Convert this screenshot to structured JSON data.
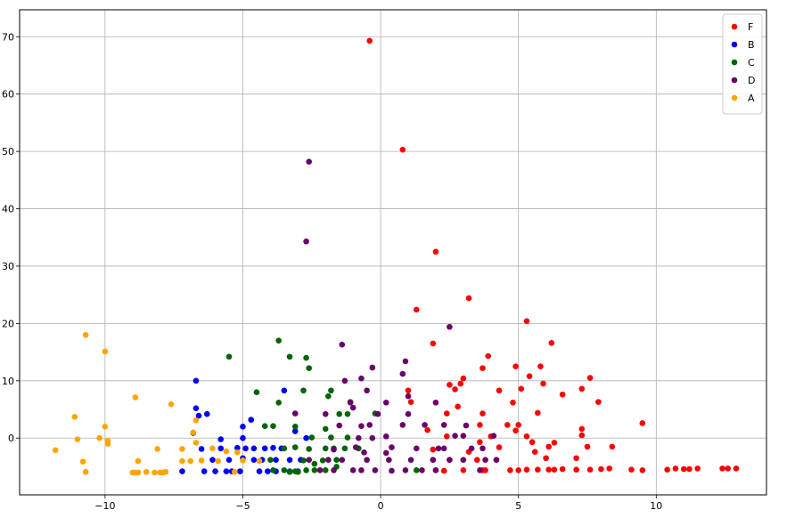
{
  "chart_data": {
    "type": "scatter",
    "title": "",
    "xlabel": "",
    "ylabel": "",
    "xlim": [
      -13.1,
      14.0
    ],
    "ylim": [
      -9.9,
      74.7
    ],
    "x_ticks": [
      -10,
      -5,
      0,
      5,
      10
    ],
    "y_ticks": [
      0,
      10,
      20,
      30,
      40,
      50,
      60,
      70
    ],
    "grid": true,
    "legend_position": "top-right",
    "series": [
      {
        "name": "F",
        "color": "#ff0000",
        "points": [
          [
            -0.4,
            69.3
          ],
          [
            0.8,
            50.3
          ],
          [
            2.0,
            32.5
          ],
          [
            3.2,
            24.4
          ],
          [
            1.3,
            22.4
          ],
          [
            5.3,
            20.4
          ],
          [
            1.9,
            16.5
          ],
          [
            6.2,
            16.6
          ],
          [
            3.9,
            14.3
          ],
          [
            5.8,
            12.5
          ],
          [
            3.7,
            12.2
          ],
          [
            4.9,
            12.5
          ],
          [
            7.6,
            10.5
          ],
          [
            5.1,
            8.6
          ],
          [
            5.4,
            10.8
          ],
          [
            7.3,
            8.6
          ],
          [
            4.3,
            8.3
          ],
          [
            1.0,
            8.3
          ],
          [
            5.9,
            9.5
          ],
          [
            6.6,
            7.6
          ],
          [
            3.0,
            10.4
          ],
          [
            2.7,
            8.5
          ],
          [
            2.9,
            9.5
          ],
          [
            2.5,
            9.3
          ],
          [
            7.9,
            6.3
          ],
          [
            4.8,
            6.2
          ],
          [
            2.8,
            5.5
          ],
          [
            5.7,
            4.4
          ],
          [
            3.7,
            4.3
          ],
          [
            1.1,
            6.3
          ],
          [
            9.5,
            2.6
          ],
          [
            7.3,
            1.6
          ],
          [
            5.0,
            2.3
          ],
          [
            4.6,
            2.3
          ],
          [
            3.6,
            2.3
          ],
          [
            2.4,
            4.3
          ],
          [
            7.3,
            0.5
          ],
          [
            7.5,
            -1.5
          ],
          [
            5.5,
            -0.7
          ],
          [
            6.3,
            -0.8
          ],
          [
            4.9,
            1.3
          ],
          [
            4.0,
            0.3
          ],
          [
            8.4,
            -1.5
          ],
          [
            6.1,
            -1.5
          ],
          [
            5.3,
            0.3
          ],
          [
            3.6,
            -0.7
          ],
          [
            2.4,
            0.3
          ],
          [
            1.7,
            1.4
          ],
          [
            1.9,
            -2.0
          ],
          [
            4.3,
            -1.6
          ],
          [
            3.2,
            -2.4
          ],
          [
            5.6,
            -2.4
          ],
          [
            7.1,
            -3.5
          ],
          [
            6.0,
            -3.5
          ],
          [
            4.2,
            -3.8
          ],
          [
            3.5,
            -3.8
          ],
          [
            2.5,
            -3.8
          ],
          [
            1.9,
            -3.8
          ],
          [
            3.7,
            -5.6
          ],
          [
            4.7,
            -5.6
          ],
          [
            5.0,
            -5.6
          ],
          [
            5.3,
            -5.5
          ],
          [
            5.7,
            -5.5
          ],
          [
            6.1,
            -5.5
          ],
          [
            6.3,
            -5.5
          ],
          [
            6.6,
            -5.4
          ],
          [
            7.1,
            -5.5
          ],
          [
            7.6,
            -5.5
          ],
          [
            8.0,
            -5.4
          ],
          [
            8.3,
            -5.3
          ],
          [
            9.1,
            -5.5
          ],
          [
            9.5,
            -5.6
          ],
          [
            10.4,
            -5.5
          ],
          [
            10.7,
            -5.3
          ],
          [
            11.0,
            -5.4
          ],
          [
            11.2,
            -5.4
          ],
          [
            11.5,
            -5.3
          ],
          [
            12.4,
            -5.3
          ],
          [
            12.6,
            -5.3
          ],
          [
            12.9,
            -5.3
          ],
          [
            2.0,
            -5.6
          ],
          [
            2.3,
            -5.7
          ],
          [
            3.0,
            -5.6
          ],
          [
            3.8,
            -5.6
          ]
        ]
      },
      {
        "name": "B",
        "color": "#0000ff",
        "points": [
          [
            -6.7,
            10.0
          ],
          [
            -3.5,
            8.3
          ],
          [
            -6.3,
            4.2
          ],
          [
            -6.6,
            3.9
          ],
          [
            -6.7,
            5.2
          ],
          [
            -4.7,
            3.2
          ],
          [
            -5.0,
            2.0
          ],
          [
            -6.8,
            0.9
          ],
          [
            -3.1,
            1.2
          ],
          [
            -5.0,
            0.0
          ],
          [
            -5.8,
            -0.2
          ],
          [
            -2.7,
            0.0
          ],
          [
            -6.5,
            -1.9
          ],
          [
            -5.8,
            -1.8
          ],
          [
            -5.2,
            -1.7
          ],
          [
            -4.9,
            -1.8
          ],
          [
            -4.6,
            -1.8
          ],
          [
            -4.2,
            -1.8
          ],
          [
            -3.9,
            -1.7
          ],
          [
            -3.6,
            -1.8
          ],
          [
            -6.1,
            -3.8
          ],
          [
            -5.5,
            -3.8
          ],
          [
            -5.0,
            -3.5
          ],
          [
            -4.6,
            -3.8
          ],
          [
            -4.3,
            -3.8
          ],
          [
            -3.8,
            -3.8
          ],
          [
            -3.3,
            -3.8
          ],
          [
            -2.9,
            -3.8
          ],
          [
            -7.2,
            -5.8
          ],
          [
            -6.4,
            -5.8
          ],
          [
            -6.0,
            -5.8
          ],
          [
            -5.6,
            -5.8
          ],
          [
            -5.4,
            -5.8
          ],
          [
            -5.1,
            -5.8
          ],
          [
            -4.4,
            -5.8
          ],
          [
            -4.1,
            -5.8
          ],
          [
            -3.8,
            -5.8
          ],
          [
            -3.3,
            -5.8
          ],
          [
            -3.0,
            -5.8
          ]
        ]
      },
      {
        "name": "C",
        "color": "#006400",
        "points": [
          [
            -3.7,
            17.0
          ],
          [
            -5.5,
            14.2
          ],
          [
            -3.3,
            14.2
          ],
          [
            -2.7,
            14.0
          ],
          [
            -2.6,
            12.2
          ],
          [
            -4.5,
            8.0
          ],
          [
            -2.8,
            8.3
          ],
          [
            -1.8,
            8.3
          ],
          [
            -1.1,
            6.3
          ],
          [
            -1.2,
            4.2
          ],
          [
            -1.5,
            4.2
          ],
          [
            -3.7,
            6.2
          ],
          [
            -1.9,
            7.3
          ],
          [
            -0.2,
            4.3
          ],
          [
            -4.2,
            2.1
          ],
          [
            -3.1,
            2.0
          ],
          [
            -2.0,
            1.6
          ],
          [
            -3.9,
            2.1
          ],
          [
            -2.5,
            0.1
          ],
          [
            -1.8,
            0.1
          ],
          [
            -1.2,
            0.1
          ],
          [
            -3.5,
            -1.8
          ],
          [
            -3.1,
            -1.6
          ],
          [
            -2.6,
            -1.9
          ],
          [
            -2.0,
            -1.8
          ],
          [
            -1.7,
            -1.8
          ],
          [
            -1.3,
            -1.8
          ],
          [
            -0.8,
            -1.8
          ],
          [
            -2.1,
            -3.9
          ],
          [
            -1.6,
            -3.8
          ],
          [
            -2.4,
            -4.5
          ],
          [
            -2.8,
            -3.9
          ],
          [
            -4.0,
            -3.8
          ],
          [
            -3.9,
            -5.6
          ],
          [
            -3.5,
            -5.6
          ],
          [
            -2.7,
            -5.6
          ],
          [
            -2.4,
            -5.6
          ],
          [
            -2.0,
            -5.6
          ],
          [
            -1.6,
            -5.0
          ],
          [
            1.3,
            -5.6
          ],
          [
            -3.1,
            -5.8
          ],
          [
            -3.0,
            -5.9
          ],
          [
            -3.3,
            -5.9
          ]
        ]
      },
      {
        "name": "D",
        "color": "#6a006a",
        "points": [
          [
            -2.6,
            48.2
          ],
          [
            -2.7,
            34.3
          ],
          [
            2.5,
            19.4
          ],
          [
            -1.4,
            16.3
          ],
          [
            0.9,
            13.4
          ],
          [
            -0.3,
            12.3
          ],
          [
            -0.7,
            10.4
          ],
          [
            -1.3,
            10.0
          ],
          [
            0.8,
            11.2
          ],
          [
            -0.5,
            8.3
          ],
          [
            1.0,
            7.3
          ],
          [
            2.0,
            6.2
          ],
          [
            -1.1,
            6.2
          ],
          [
            0.2,
            6.2
          ],
          [
            -1.0,
            5.3
          ],
          [
            1.0,
            4.2
          ],
          [
            -0.1,
            4.2
          ],
          [
            -2.0,
            4.2
          ],
          [
            -3.1,
            4.3
          ],
          [
            0.8,
            2.3
          ],
          [
            1.6,
            2.3
          ],
          [
            -0.4,
            2.3
          ],
          [
            -0.7,
            2.1
          ],
          [
            -1.5,
            2.2
          ],
          [
            2.3,
            2.3
          ],
          [
            3.1,
            2.2
          ],
          [
            4.1,
            0.4
          ],
          [
            3.0,
            0.4
          ],
          [
            2.7,
            0.4
          ],
          [
            0.2,
            0.3
          ],
          [
            -0.3,
            0.0
          ],
          [
            -0.8,
            0.0
          ],
          [
            -0.9,
            -1.6
          ],
          [
            0.4,
            -1.6
          ],
          [
            1.3,
            -1.8
          ],
          [
            2.1,
            -1.8
          ],
          [
            2.3,
            -1.8
          ],
          [
            3.3,
            -1.8
          ],
          [
            3.7,
            -1.8
          ],
          [
            -1.7,
            -2.0
          ],
          [
            -0.6,
            -2.5
          ],
          [
            0.2,
            -2.6
          ],
          [
            -0.5,
            -3.8
          ],
          [
            0.3,
            -3.8
          ],
          [
            1.1,
            -3.8
          ],
          [
            1.9,
            -3.8
          ],
          [
            2.5,
            -3.8
          ],
          [
            3.0,
            -3.8
          ],
          [
            3.8,
            -3.8
          ],
          [
            4.2,
            -3.8
          ],
          [
            -2.6,
            -3.8
          ],
          [
            -1.9,
            -3.8
          ],
          [
            -1.4,
            -3.8
          ],
          [
            -0.2,
            -5.6
          ],
          [
            0.4,
            -5.7
          ],
          [
            0.9,
            -5.6
          ],
          [
            1.5,
            -5.6
          ],
          [
            2.0,
            -5.6
          ],
          [
            3.6,
            -5.6
          ],
          [
            -0.7,
            -5.6
          ],
          [
            -1.7,
            -5.6
          ],
          [
            -2.2,
            -5.6
          ],
          [
            -1.0,
            -5.6
          ]
        ]
      },
      {
        "name": "A",
        "color": "#ffa500",
        "points": [
          [
            -10.7,
            18.0
          ],
          [
            -10.0,
            15.1
          ],
          [
            -8.9,
            7.1
          ],
          [
            -7.6,
            5.9
          ],
          [
            -11.1,
            3.7
          ],
          [
            -6.7,
            3.1
          ],
          [
            -10.0,
            2.0
          ],
          [
            -6.8,
            1.0
          ],
          [
            -10.2,
            0.0
          ],
          [
            -11.0,
            -0.2
          ],
          [
            -9.9,
            -0.5
          ],
          [
            -6.7,
            -0.8
          ],
          [
            -9.9,
            -1.0
          ],
          [
            -11.8,
            -2.1
          ],
          [
            -8.1,
            -1.9
          ],
          [
            -7.2,
            -1.9
          ],
          [
            -6.1,
            -1.8
          ],
          [
            -5.2,
            -2.5
          ],
          [
            -5.6,
            -2.3
          ],
          [
            -10.8,
            -4.1
          ],
          [
            -8.8,
            -4.0
          ],
          [
            -7.2,
            -4.0
          ],
          [
            -6.9,
            -4.0
          ],
          [
            -6.5,
            -3.9
          ],
          [
            -5.9,
            -4.0
          ],
          [
            -5.0,
            -3.9
          ],
          [
            -10.7,
            -5.9
          ],
          [
            -8.9,
            -6.0
          ],
          [
            -8.8,
            -6.0
          ],
          [
            -8.5,
            -5.9
          ],
          [
            -8.2,
            -6.0
          ],
          [
            -8.0,
            -6.0
          ],
          [
            -7.9,
            -6.0
          ],
          [
            -7.8,
            -5.9
          ],
          [
            -9.0,
            -6.0
          ],
          [
            -5.3,
            -5.9
          ],
          [
            -4.4,
            -4.0
          ]
        ]
      }
    ]
  }
}
